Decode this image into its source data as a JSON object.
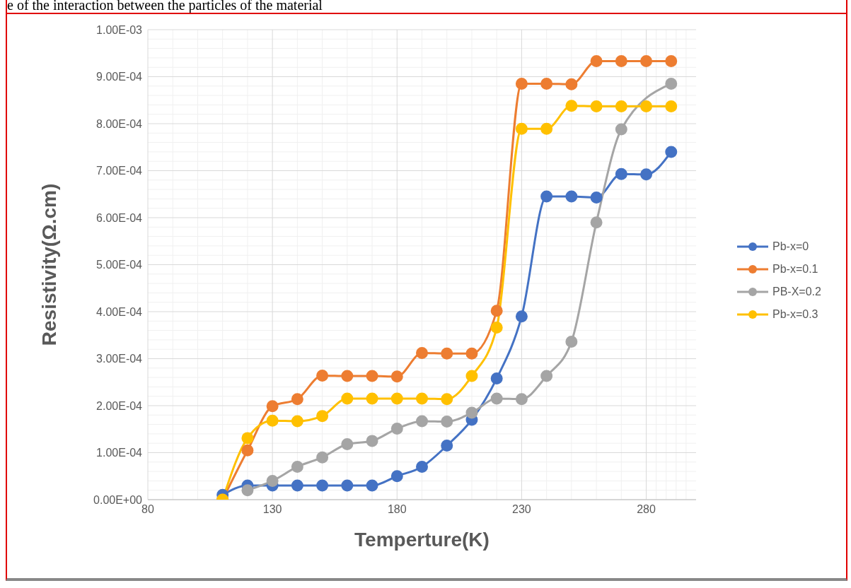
{
  "chart_data": {
    "type": "line",
    "xlabel": "Temperture(K)",
    "ylabel": "Resistivity(Ω.cm)",
    "annotations": [
      "e of the interaction between the particles of the material"
    ],
    "x": [
      110,
      120,
      130,
      140,
      150,
      160,
      170,
      180,
      190,
      200,
      210,
      220,
      230,
      240,
      250,
      260,
      270,
      280,
      290
    ],
    "series": [
      {
        "name": "Pb-x=0",
        "color": "#4472c4",
        "values": [
          1e-05,
          3e-05,
          3e-05,
          3e-05,
          3e-05,
          3e-05,
          3e-05,
          5e-05,
          7e-05,
          0.000115,
          0.00017,
          0.000258,
          0.00039,
          0.000645,
          0.000645,
          0.000643,
          0.000693,
          0.000692,
          0.00074
        ]
      },
      {
        "name": "Pb-x=0.1",
        "color": "#ed7d31",
        "values": [
          0,
          0.000105,
          0.000199,
          0.000214,
          0.000264,
          0.000263,
          0.000263,
          0.000262,
          0.000312,
          0.000311,
          0.000311,
          0.000402,
          0.000885,
          0.000885,
          0.000884,
          0.000933,
          0.000933,
          0.000933,
          0.000933
        ]
      },
      {
        "name": "PB-X=0.2",
        "color": "#a5a5a5",
        "values": [
          null,
          2e-05,
          4e-05,
          7e-05,
          9e-05,
          0.000118,
          0.000125,
          0.000151,
          0.000167,
          0.000166,
          0.000185,
          0.000215,
          0.000214,
          0.000263,
          0.000336,
          0.00059,
          0.000788,
          null,
          0.000885
        ]
      },
      {
        "name": "Pb-x=0.3",
        "color": "#ffc000",
        "values": [
          0,
          0.000131,
          0.000168,
          0.000167,
          0.000178,
          0.000215,
          0.000215,
          0.000215,
          0.000215,
          0.000214,
          0.000263,
          0.000366,
          0.000789,
          0.000789,
          0.000838,
          0.000837,
          0.000837,
          0.000837,
          0.000837
        ]
      }
    ],
    "xlim": [
      80,
      300
    ],
    "xticks": [
      80,
      130,
      180,
      230,
      280
    ],
    "ylim": [
      0,
      0.001
    ],
    "yticks": [
      {
        "value": 0,
        "label": "0.00E+00"
      },
      {
        "value": 0.0001,
        "label": "1.00E-04"
      },
      {
        "value": 0.0002,
        "label": "2.00E-04"
      },
      {
        "value": 0.0003,
        "label": "3.00E-04"
      },
      {
        "value": 0.0004,
        "label": "4.00E-04"
      },
      {
        "value": 0.0005,
        "label": "5.00E-04"
      },
      {
        "value": 0.0006,
        "label": "6.00E-04"
      },
      {
        "value": 0.0007,
        "label": "7.00E-04"
      },
      {
        "value": 0.0008,
        "label": "8.00E-04"
      },
      {
        "value": 0.0009,
        "label": "9.00E-04"
      },
      {
        "value": 0.001,
        "label": "1.00E-03"
      }
    ],
    "grid": true,
    "legend": "right",
    "marker": "circle",
    "line_style": "solid"
  }
}
